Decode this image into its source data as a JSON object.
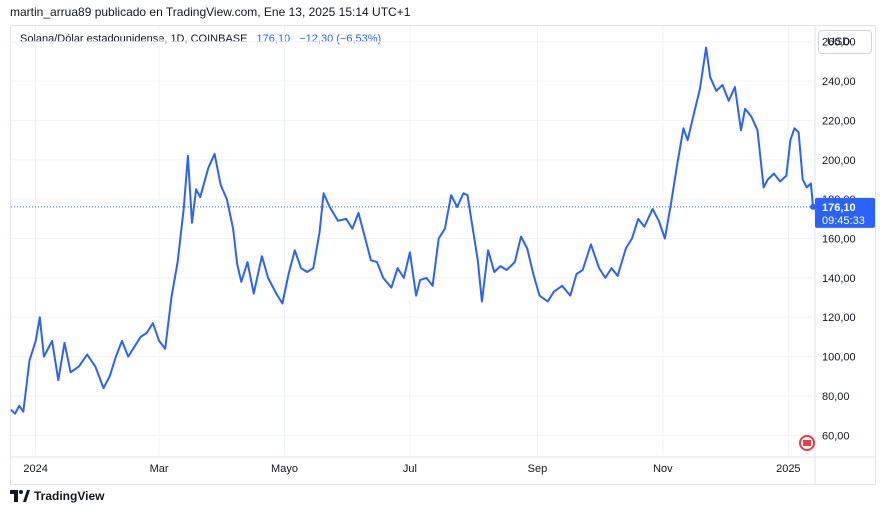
{
  "header": {
    "publish_line": "martin_arrua89 publicado en TradingView.com, Ene 13, 2025 15:14 UTC+1"
  },
  "legend": {
    "symbol": "Solana/Dólar estadounidense, 1D, COINBASE",
    "value": "176,10",
    "change": "−12,30 (−6,53%)"
  },
  "currency_button": {
    "label": "USD"
  },
  "price_tag": {
    "price": "176,10",
    "countdown": "09:45:33"
  },
  "footer": {
    "brand": "TradingView"
  },
  "colors": {
    "line": "#2962ff",
    "grid": "#f0f3fa",
    "text": "#131722",
    "accent": "#2962ff"
  },
  "chart_data": {
    "type": "line",
    "title": "",
    "xlabel": "",
    "ylabel": "",
    "x_ticks": [
      "2024",
      "Mar",
      "Mayo",
      "Jul",
      "Sep",
      "Nov",
      "2025"
    ],
    "y_ticks": [
      "60,00",
      "80,00",
      "100,00",
      "120,00",
      "140,00",
      "160,00",
      "180,00",
      "200,00",
      "220,00",
      "240,00",
      "260,00"
    ],
    "ylim": [
      50,
      268
    ],
    "xlim": [
      "2023-12-20",
      "2025-01-13"
    ],
    "grid": true,
    "last_value": 176.1,
    "series": [
      {
        "values": [
          [
            "2023-12-20",
            73
          ],
          [
            "2023-12-22",
            71
          ],
          [
            "2023-12-24",
            75
          ],
          [
            "2023-12-26",
            72
          ],
          [
            "2023-12-29",
            98
          ],
          [
            "2024-01-01",
            108
          ],
          [
            "2024-01-03",
            120
          ],
          [
            "2024-01-05",
            100
          ],
          [
            "2024-01-09",
            108
          ],
          [
            "2024-01-12",
            88
          ],
          [
            "2024-01-15",
            107
          ],
          [
            "2024-01-18",
            92
          ],
          [
            "2024-01-22",
            95
          ],
          [
            "2024-01-26",
            101
          ],
          [
            "2024-01-30",
            95
          ],
          [
            "2024-02-03",
            84
          ],
          [
            "2024-02-06",
            90
          ],
          [
            "2024-02-09",
            100
          ],
          [
            "2024-02-12",
            108
          ],
          [
            "2024-02-15",
            100
          ],
          [
            "2024-02-18",
            105
          ],
          [
            "2024-02-21",
            110
          ],
          [
            "2024-02-24",
            112
          ],
          [
            "2024-02-27",
            117
          ],
          [
            "2024-03-01",
            108
          ],
          [
            "2024-03-04",
            104
          ],
          [
            "2024-03-07",
            130
          ],
          [
            "2024-03-10",
            148
          ],
          [
            "2024-03-13",
            175
          ],
          [
            "2024-03-15",
            202
          ],
          [
            "2024-03-17",
            168
          ],
          [
            "2024-03-19",
            185
          ],
          [
            "2024-03-21",
            181
          ],
          [
            "2024-03-25",
            196
          ],
          [
            "2024-03-28",
            203
          ],
          [
            "2024-03-31",
            187
          ],
          [
            "2024-04-03",
            180
          ],
          [
            "2024-04-06",
            165
          ],
          [
            "2024-04-08",
            147
          ],
          [
            "2024-04-10",
            138
          ],
          [
            "2024-04-13",
            148
          ],
          [
            "2024-04-16",
            132
          ],
          [
            "2024-04-20",
            151
          ],
          [
            "2024-04-23",
            140
          ],
          [
            "2024-04-27",
            132
          ],
          [
            "2024-04-30",
            127
          ],
          [
            "2024-05-03",
            142
          ],
          [
            "2024-05-06",
            154
          ],
          [
            "2024-05-09",
            145
          ],
          [
            "2024-05-12",
            143
          ],
          [
            "2024-05-15",
            145
          ],
          [
            "2024-05-18",
            163
          ],
          [
            "2024-05-20",
            183
          ],
          [
            "2024-05-23",
            176
          ],
          [
            "2024-05-27",
            169
          ],
          [
            "2024-05-31",
            170
          ],
          [
            "2024-06-03",
            165
          ],
          [
            "2024-06-06",
            173
          ],
          [
            "2024-06-09",
            161
          ],
          [
            "2024-06-12",
            149
          ],
          [
            "2024-06-15",
            148
          ],
          [
            "2024-06-18",
            140
          ],
          [
            "2024-06-22",
            135
          ],
          [
            "2024-06-25",
            145
          ],
          [
            "2024-06-28",
            140
          ],
          [
            "2024-07-01",
            153
          ],
          [
            "2024-07-04",
            131
          ],
          [
            "2024-07-06",
            139
          ],
          [
            "2024-07-09",
            140
          ],
          [
            "2024-07-12",
            136
          ],
          [
            "2024-07-15",
            160
          ],
          [
            "2024-07-18",
            165
          ],
          [
            "2024-07-21",
            182
          ],
          [
            "2024-07-24",
            176
          ],
          [
            "2024-07-27",
            183
          ],
          [
            "2024-07-29",
            182
          ],
          [
            "2024-08-01",
            162
          ],
          [
            "2024-08-03",
            149
          ],
          [
            "2024-08-05",
            128
          ],
          [
            "2024-08-08",
            154
          ],
          [
            "2024-08-11",
            143
          ],
          [
            "2024-08-14",
            146
          ],
          [
            "2024-08-17",
            144
          ],
          [
            "2024-08-21",
            148
          ],
          [
            "2024-08-24",
            161
          ],
          [
            "2024-08-27",
            155
          ],
          [
            "2024-08-30",
            142
          ],
          [
            "2024-09-02",
            131
          ],
          [
            "2024-09-06",
            128
          ],
          [
            "2024-09-09",
            133
          ],
          [
            "2024-09-13",
            136
          ],
          [
            "2024-09-17",
            131
          ],
          [
            "2024-09-20",
            142
          ],
          [
            "2024-09-23",
            144
          ],
          [
            "2024-09-27",
            157
          ],
          [
            "2024-10-01",
            145
          ],
          [
            "2024-10-04",
            140
          ],
          [
            "2024-10-07",
            145
          ],
          [
            "2024-10-10",
            141
          ],
          [
            "2024-10-14",
            155
          ],
          [
            "2024-10-17",
            160
          ],
          [
            "2024-10-20",
            170
          ],
          [
            "2024-10-23",
            166
          ],
          [
            "2024-10-27",
            175
          ],
          [
            "2024-10-30",
            169
          ],
          [
            "2024-11-02",
            160
          ],
          [
            "2024-11-05",
            178
          ],
          [
            "2024-11-08",
            198
          ],
          [
            "2024-11-11",
            216
          ],
          [
            "2024-11-13",
            210
          ],
          [
            "2024-11-16",
            223
          ],
          [
            "2024-11-19",
            236
          ],
          [
            "2024-11-22",
            257
          ],
          [
            "2024-11-24",
            242
          ],
          [
            "2024-11-27",
            235
          ],
          [
            "2024-11-30",
            238
          ],
          [
            "2024-12-03",
            230
          ],
          [
            "2024-12-06",
            237
          ],
          [
            "2024-12-09",
            215
          ],
          [
            "2024-12-11",
            226
          ],
          [
            "2024-12-14",
            222
          ],
          [
            "2024-12-17",
            215
          ],
          [
            "2024-12-20",
            186
          ],
          [
            "2024-12-22",
            190
          ],
          [
            "2024-12-25",
            193
          ],
          [
            "2024-12-28",
            189
          ],
          [
            "2024-12-31",
            192
          ],
          [
            "2025-01-02",
            210
          ],
          [
            "2025-01-04",
            216
          ],
          [
            "2025-01-06",
            214
          ],
          [
            "2025-01-08",
            190
          ],
          [
            "2025-01-10",
            186
          ],
          [
            "2025-01-12",
            188
          ],
          [
            "2025-01-13",
            176.1
          ]
        ]
      }
    ]
  }
}
